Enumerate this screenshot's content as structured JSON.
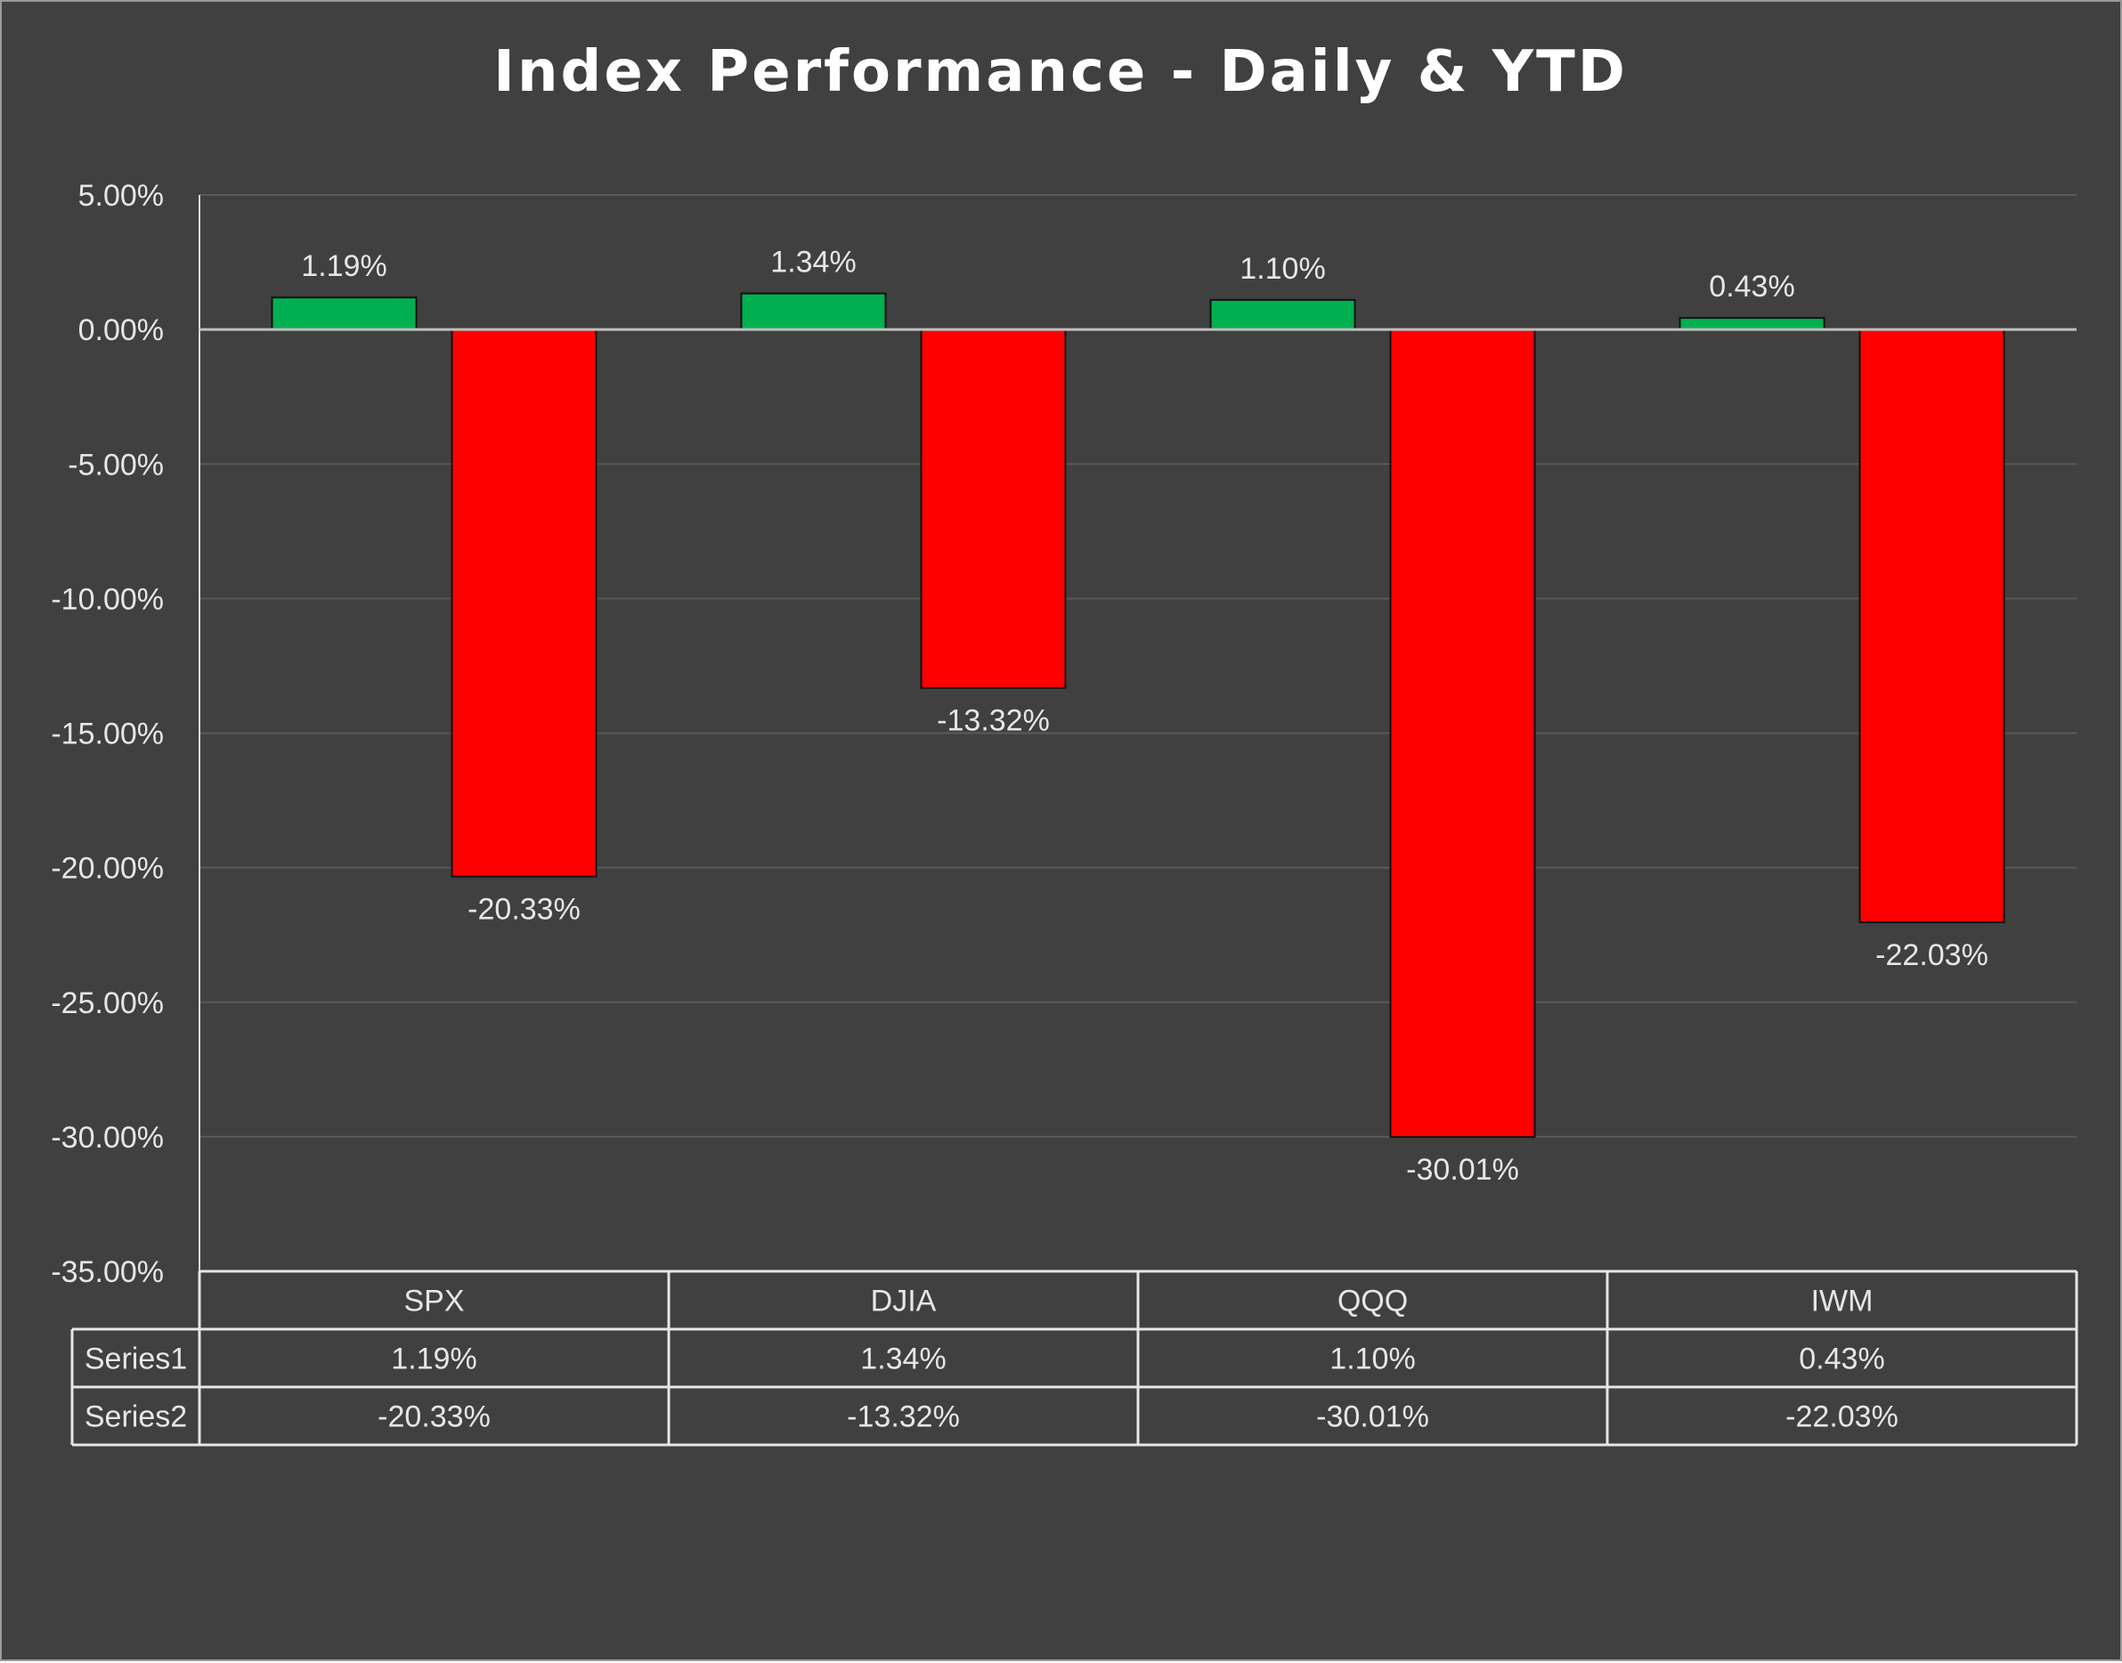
{
  "chart_data": {
    "type": "bar",
    "title": "Index Performance - Daily & YTD",
    "categories": [
      "SPX",
      "DJIA",
      "QQQ",
      "IWM"
    ],
    "series": [
      {
        "name": "Series1",
        "values": [
          1.19,
          1.34,
          1.1,
          0.43
        ],
        "labels": [
          "1.19%",
          "1.34%",
          "1.10%",
          "0.43%"
        ]
      },
      {
        "name": "Series2",
        "values": [
          -20.33,
          -13.32,
          -30.01,
          -22.03
        ],
        "labels": [
          "-20.33%",
          "-13.32%",
          "-30.01%",
          "-22.03%"
        ]
      }
    ],
    "ylim": [
      -35,
      5
    ],
    "y_ticks": [
      5,
      0,
      -5,
      -10,
      -15,
      -20,
      -25,
      -30,
      -35
    ],
    "y_tick_labels": [
      "5.00%",
      "0.00%",
      "-5.00%",
      "-10.00%",
      "-15.00%",
      "-20.00%",
      "-25.00%",
      "-30.00%",
      "-35.00%"
    ],
    "grid": true,
    "legend": "none",
    "data_table": true,
    "colors": {
      "positive": "#00b050",
      "negative": "#ff0000",
      "background": "#404040",
      "gridline": "#5a5a5a",
      "text": "#e6e6e6"
    }
  }
}
